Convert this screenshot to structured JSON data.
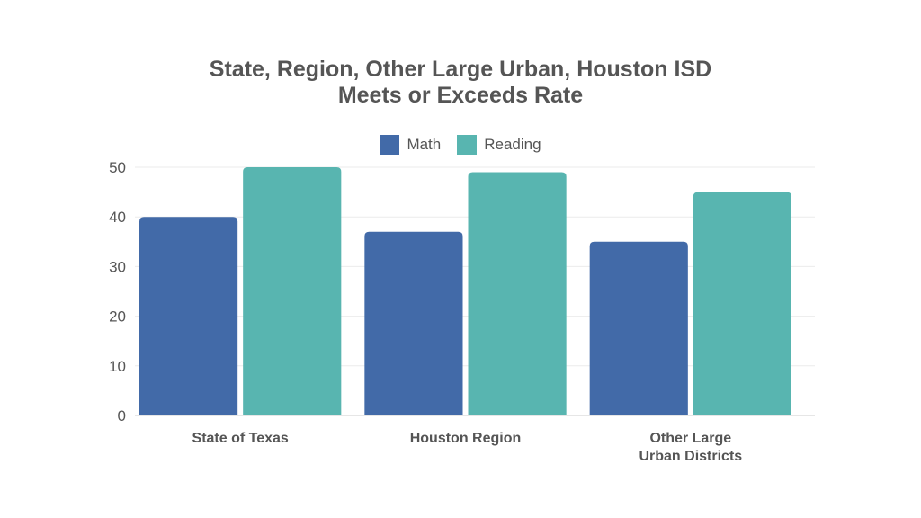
{
  "chart_data": {
    "type": "bar",
    "title": [
      "State, Region, Other Large Urban, Houston ISD",
      "Meets or Exceeds Rate"
    ],
    "xlabel": "",
    "ylabel": "",
    "categories": [
      [
        "State of Texas"
      ],
      [
        "Houston Region"
      ],
      [
        "Other Large",
        "Urban Districts"
      ]
    ],
    "series": [
      {
        "name": "Math",
        "color": "#426aa8",
        "values": [
          40,
          37,
          35
        ]
      },
      {
        "name": "Reading",
        "color": "#58b5b0",
        "values": [
          50,
          49,
          45
        ]
      }
    ],
    "ylim": [
      0,
      50
    ],
    "yticks": [
      0,
      10,
      20,
      30,
      40,
      50
    ],
    "grid": true,
    "legend": "top-center"
  }
}
